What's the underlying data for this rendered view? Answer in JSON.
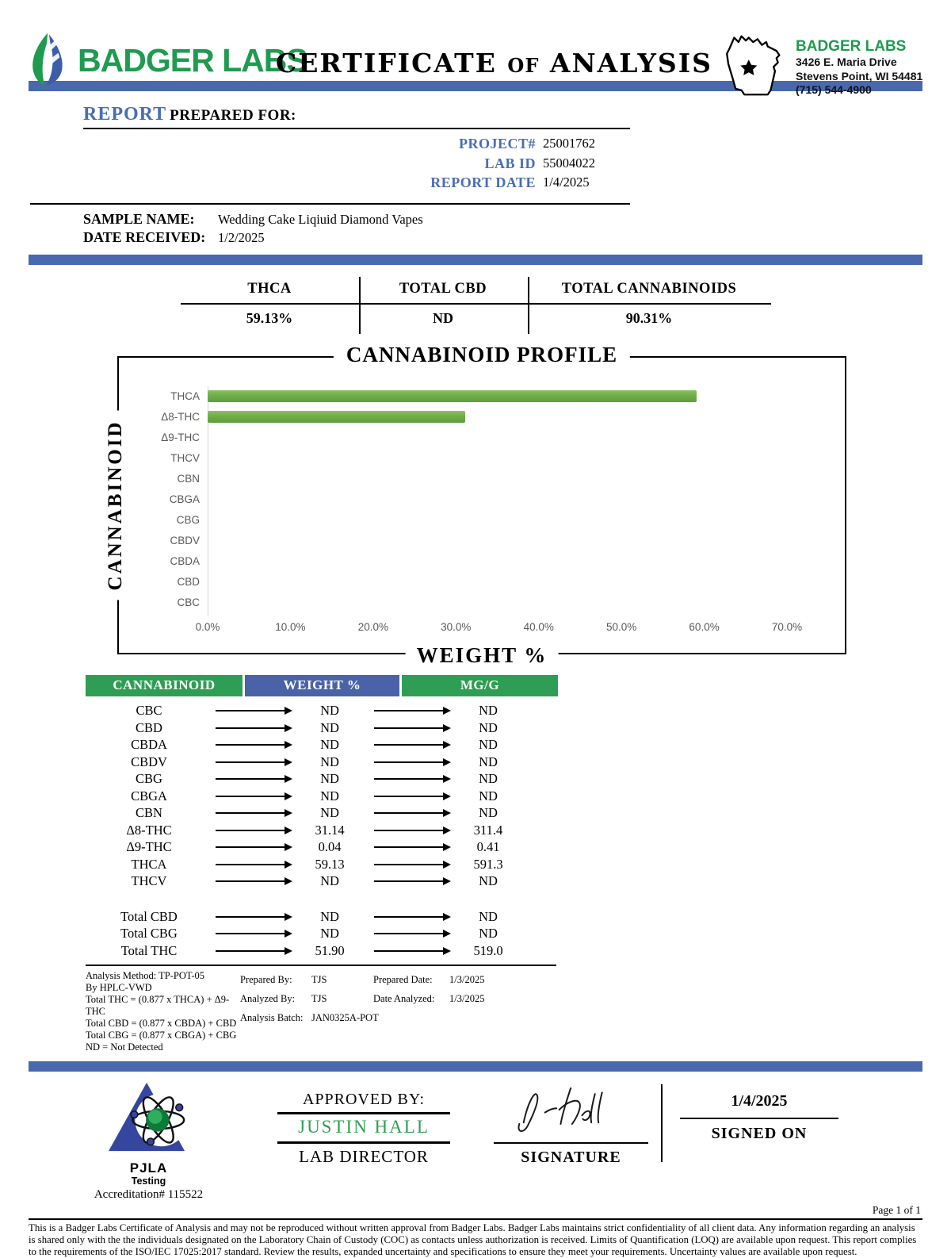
{
  "colors": {
    "brand_green": "#1f9b50",
    "accent_blue_bar": "#4968ae",
    "label_blue": "#4a6db4",
    "table_header_green": "#2f9e54",
    "table_header_blue": "#4a62a8",
    "chart_bar_green": "#6fad47"
  },
  "header": {
    "brand_text": "BADGER LABS",
    "title_word1": "CERTIFICATE",
    "title_word2": "OF",
    "title_word3": "ANALYSIS",
    "lab_card": {
      "name": "BADGER LABS",
      "address_line1": "3426 E. Maria Drive",
      "address_line2": "Stevens Point, WI 54481",
      "phone": "(715) 544-4900"
    }
  },
  "report": {
    "report_word": "REPORT",
    "prepared_for_word": "PREPARED FOR:",
    "project_label": "PROJECT#",
    "project_value": "25001762",
    "lab_id_label": "LAB ID",
    "lab_id_value": "55004022",
    "report_date_label": "REPORT DATE",
    "report_date_value": "1/4/2025",
    "sample_name_label": "SAMPLE NAME:",
    "sample_name_value": "Wedding Cake Liqiuid Diamond Vapes",
    "date_received_label": "DATE RECEIVED:",
    "date_received_value": "1/2/2025"
  },
  "summary": {
    "columns": [
      {
        "label": "THCA",
        "value": "59.13%"
      },
      {
        "label": "TOTAL CBD",
        "value": "ND"
      },
      {
        "label": "TOTAL CANNABINOIDS",
        "value": "90.31%"
      }
    ]
  },
  "chart_data": {
    "type": "bar",
    "orientation": "horizontal",
    "title": "CANNABINOID PROFILE",
    "xlabel": "WEIGHT %",
    "ylabel": "CANNABINOID",
    "categories": [
      "THCA",
      "Δ8-THC",
      "Δ9-THC",
      "THCV",
      "CBN",
      "CBGA",
      "CBG",
      "CBDV",
      "CBDA",
      "CBD",
      "CBC"
    ],
    "values": [
      59.13,
      31.14,
      0.04,
      0,
      0,
      0,
      0,
      0,
      0,
      0,
      0
    ],
    "nd_categories": [
      "THCV",
      "CBN",
      "CBGA",
      "CBG",
      "CBDV",
      "CBDA",
      "CBD",
      "CBC"
    ],
    "xlim": [
      0,
      70
    ],
    "x_ticks": [
      "0.0%",
      "10.0%",
      "20.0%",
      "30.0%",
      "40.0%",
      "50.0%",
      "60.0%",
      "70.0%"
    ],
    "grid": false,
    "legend": "none"
  },
  "cannabinoid_table": {
    "headers": [
      "CANNABINOID",
      "WEIGHT %",
      "MG/G"
    ],
    "rows": [
      {
        "name": "CBC",
        "weight": "ND",
        "mgg": "ND"
      },
      {
        "name": "CBD",
        "weight": "ND",
        "mgg": "ND"
      },
      {
        "name": "CBDA",
        "weight": "ND",
        "mgg": "ND"
      },
      {
        "name": "CBDV",
        "weight": "ND",
        "mgg": "ND"
      },
      {
        "name": "CBG",
        "weight": "ND",
        "mgg": "ND"
      },
      {
        "name": "CBGA",
        "weight": "ND",
        "mgg": "ND"
      },
      {
        "name": "CBN",
        "weight": "ND",
        "mgg": "ND"
      },
      {
        "name": "Δ8-THC",
        "weight": "31.14",
        "mgg": "311.4"
      },
      {
        "name": "Δ9-THC",
        "weight": "0.04",
        "mgg": "0.41"
      },
      {
        "name": "THCA",
        "weight": "59.13",
        "mgg": "591.3"
      },
      {
        "name": "THCV",
        "weight": "ND",
        "mgg": "ND"
      }
    ],
    "totals": [
      {
        "name": "Total CBD",
        "weight": "ND",
        "mgg": "ND"
      },
      {
        "name": "Total CBG",
        "weight": "ND",
        "mgg": "ND"
      },
      {
        "name": "Total THC",
        "weight": "51.90",
        "mgg": "519.0"
      }
    ]
  },
  "footnotes": {
    "left_lines": [
      "Analysis Method: TP-POT-05",
      "By HPLC-VWD",
      "Total THC = (0.877 x  THCA) + Δ9-THC",
      "Total CBD = (0.877 x  CBDA) + CBD",
      "Total CBG = (0.877 x  CBGA) + CBG",
      "ND = Not Detected"
    ],
    "prepared_by_label": "Prepared By:",
    "prepared_by_value": "TJS",
    "prepared_date_label": "Prepared Date:",
    "prepared_date_value": "1/3/2025",
    "analyzed_by_label": "Analyzed By:",
    "analyzed_by_value": "TJS",
    "date_analyzed_label": "Date Analyzed:",
    "date_analyzed_value": "1/3/2025",
    "analysis_batch_label": "Analysis Batch:",
    "analysis_batch_value": "JAN0325A-POT"
  },
  "approval": {
    "accreditation_org": "PJLA",
    "accreditation_sub": "Testing",
    "accreditation_number": "Accreditation# 115522",
    "approved_by_label": "APPROVED BY:",
    "approver_name": "JUSTIN HALL",
    "approver_title": "LAB DIRECTOR",
    "signature_label": "SIGNATURE",
    "signed_on_date": "1/4/2025",
    "signed_on_label": "SIGNED ON",
    "page_label": "Page 1 of 1"
  },
  "footer": {
    "disclaimer": "This is a Badger Labs Certificate of Analysis and may not be reproduced without written approval from Badger Labs. Badger Labs maintains strict confidentiality of all client data. Any information regarding an analysis is shared only with the the individuals designated on the Laboratory Chain of Custody (COC) as contacts unless authorization is received. Limits of Quantification (LOQ) are available upon request. This report complies to the requirements of the ISO/IEC 17025:2017 standard. Review the results, expanded uncertainty and specifications to ensure they meet your requirements. Uncertainty values are available upon request."
  }
}
